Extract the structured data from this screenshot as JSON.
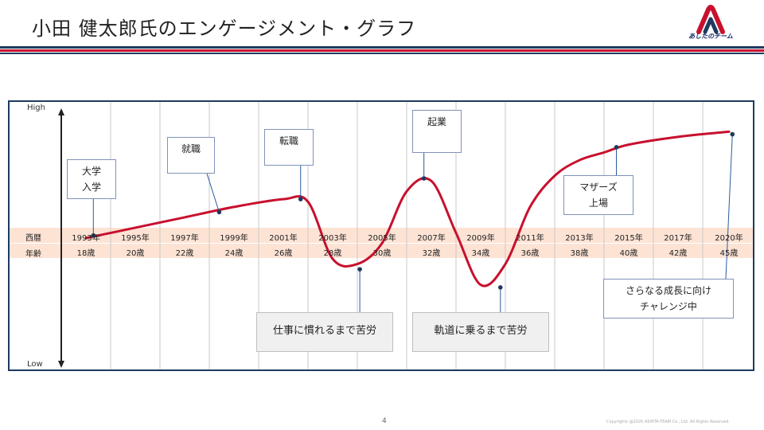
{
  "page": {
    "title": "小田 健太郎氏のエンゲージメント・グラフ",
    "logo_text": "あしたのチーム",
    "page_number": "4",
    "copyright": "Copyrights @2020 ASHITA-TEAM Co., Ltd. All Rights Reserved."
  },
  "colors": {
    "accent_red": "#c8102e",
    "navy": "#1f3a5f",
    "band": "#fde3d4"
  },
  "chart_data": {
    "type": "line",
    "title": "",
    "y_axis": {
      "high_label": "High",
      "low_label": "Low"
    },
    "row_labels": {
      "year": "西暦",
      "age": "年齢"
    },
    "years": [
      "1993年",
      "1995年",
      "1997年",
      "1999年",
      "2001年",
      "2003年",
      "2005年",
      "2007年",
      "2009年",
      "2011年",
      "2013年",
      "2015年",
      "2017年",
      "2020年"
    ],
    "ages": [
      "18歳",
      "20歳",
      "22歳",
      "24歳",
      "26歳",
      "28歳",
      "30歳",
      "32歳",
      "34歳",
      "36歳",
      "38歳",
      "40歳",
      "42歳",
      "45歳"
    ],
    "ylim": [
      0,
      100
    ],
    "x_range": [
      1992,
      2021
    ],
    "series": [
      {
        "values_note": "",
        "points": [
          [
            1993,
            50
          ],
          [
            1995,
            54
          ],
          [
            1997,
            58
          ],
          [
            1999,
            62
          ],
          [
            2001,
            65
          ],
          [
            2002,
            64
          ],
          [
            2003,
            42
          ],
          [
            2004,
            40
          ],
          [
            2005,
            48
          ],
          [
            2006,
            68
          ],
          [
            2007,
            72
          ],
          [
            2008,
            52
          ],
          [
            2009,
            32
          ],
          [
            2010,
            40
          ],
          [
            2011,
            62
          ],
          [
            2012,
            74
          ],
          [
            2013,
            80
          ],
          [
            2014,
            83
          ],
          [
            2015,
            86
          ],
          [
            2017,
            89
          ],
          [
            2020,
            91
          ]
        ]
      }
    ],
    "annotations": [
      {
        "id": "univ",
        "lines": [
          "大学",
          "入学"
        ],
        "x": 1993.3,
        "y": 51,
        "style": "white"
      },
      {
        "id": "job",
        "lines": [
          "就職"
        ],
        "x": 1998.4,
        "y": 60,
        "style": "white"
      },
      {
        "id": "change",
        "lines": [
          "転職"
        ],
        "x": 2001.7,
        "y": 65,
        "style": "white"
      },
      {
        "id": "startup",
        "lines": [
          "起業"
        ],
        "x": 2006.7,
        "y": 73,
        "style": "white"
      },
      {
        "id": "maternity",
        "lines": [
          "マザーズ",
          "上場"
        ],
        "x": 2014.5,
        "y": 85,
        "style": "white"
      },
      {
        "id": "struggle1",
        "lines": [
          "仕事に慣れるまで苦労"
        ],
        "x": 2004.1,
        "y": 38,
        "style": "grey"
      },
      {
        "id": "struggle2",
        "lines": [
          "軌道に乗るまで苦労"
        ],
        "x": 2009.8,
        "y": 31,
        "style": "grey"
      },
      {
        "id": "future",
        "lines": [
          "さらなる成長に向け",
          "チャレンジ中"
        ],
        "x": 2020.2,
        "y": 90,
        "style": "white"
      }
    ]
  }
}
